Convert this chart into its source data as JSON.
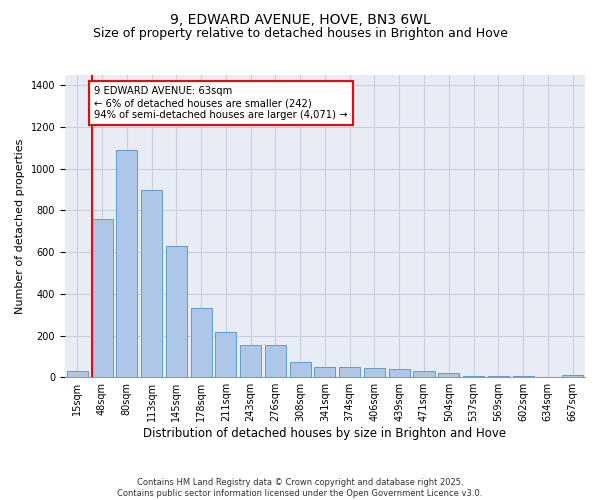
{
  "title": "9, EDWARD AVENUE, HOVE, BN3 6WL",
  "subtitle": "Size of property relative to detached houses in Brighton and Hove",
  "xlabel": "Distribution of detached houses by size in Brighton and Hove",
  "ylabel": "Number of detached properties",
  "footer_line1": "Contains HM Land Registry data © Crown copyright and database right 2025.",
  "footer_line2": "Contains public sector information licensed under the Open Government Licence v3.0.",
  "categories": [
    "15sqm",
    "48sqm",
    "80sqm",
    "113sqm",
    "145sqm",
    "178sqm",
    "211sqm",
    "243sqm",
    "276sqm",
    "308sqm",
    "341sqm",
    "374sqm",
    "406sqm",
    "439sqm",
    "471sqm",
    "504sqm",
    "537sqm",
    "569sqm",
    "602sqm",
    "634sqm",
    "667sqm"
  ],
  "values": [
    30,
    760,
    1090,
    900,
    630,
    330,
    215,
    155,
    155,
    75,
    50,
    50,
    45,
    40,
    30,
    20,
    5,
    5,
    5,
    2,
    10
  ],
  "bar_color": "#aec6e8",
  "bar_edge_color": "#5a9fd4",
  "vline_x_index": 1,
  "vline_color": "red",
  "annotation_text": "9 EDWARD AVENUE: 63sqm\n← 6% of detached houses are smaller (242)\n94% of semi-detached houses are larger (4,071) →",
  "ylim": [
    0,
    1450
  ],
  "yticks": [
    0,
    200,
    400,
    600,
    800,
    1000,
    1200,
    1400
  ],
  "grid_color": "#c8d0dc",
  "bg_color": "#e8edf5",
  "title_fontsize": 10,
  "subtitle_fontsize": 9,
  "tick_fontsize": 7,
  "ylabel_fontsize": 8,
  "xlabel_fontsize": 8.5,
  "footer_fontsize": 6
}
